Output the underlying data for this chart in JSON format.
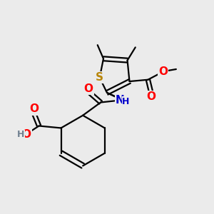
{
  "bg_color": "#ebebeb",
  "bond_color": "#000000",
  "bond_width": 1.6,
  "atom_colors": {
    "S": "#b8860b",
    "O": "#ff0000",
    "N": "#0000cc",
    "H": "#708090",
    "C": "#000000"
  },
  "figsize": [
    3.0,
    3.0
  ],
  "dpi": 100
}
